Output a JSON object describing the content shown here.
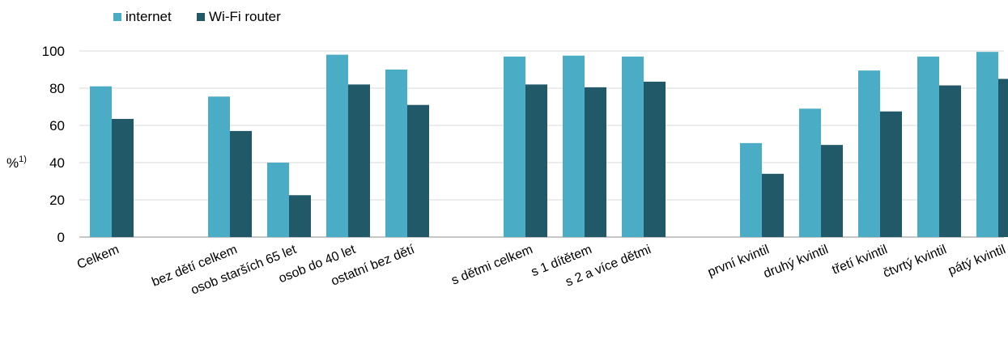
{
  "chart_data": {
    "type": "bar",
    "ylabel": "%",
    "ylabel_sup": "1)",
    "ylim": [
      0,
      100
    ],
    "yticks": [
      "0",
      "20",
      "40",
      "60",
      "80",
      "100"
    ],
    "grid": "horizontal",
    "legend_position": "top-left",
    "categories": [
      "Celkem",
      "bez dětí celkem",
      "osob starších 65 let",
      "osob do 40 let",
      "ostatní  bez dětí",
      "s dětmi celkem",
      "s 1 dítětem",
      "s 2 a více dětmi",
      "první kvintil",
      "druhý kvintil",
      "třetí kvintil",
      "čtvrtý kvintil",
      "pátý kvintil"
    ],
    "series": [
      {
        "name": "internet",
        "color": "#4bacc6",
        "values": [
          81,
          75.5,
          40,
          98,
          90,
          97,
          97.5,
          97,
          50.5,
          69,
          89.5,
          97,
          99.5
        ]
      },
      {
        "name": "Wi-Fi router",
        "color": "#215968",
        "values": [
          63.5,
          57,
          22.5,
          82,
          71,
          82,
          80.5,
          83.5,
          34,
          49.5,
          67.5,
          81.5,
          85
        ]
      }
    ]
  }
}
